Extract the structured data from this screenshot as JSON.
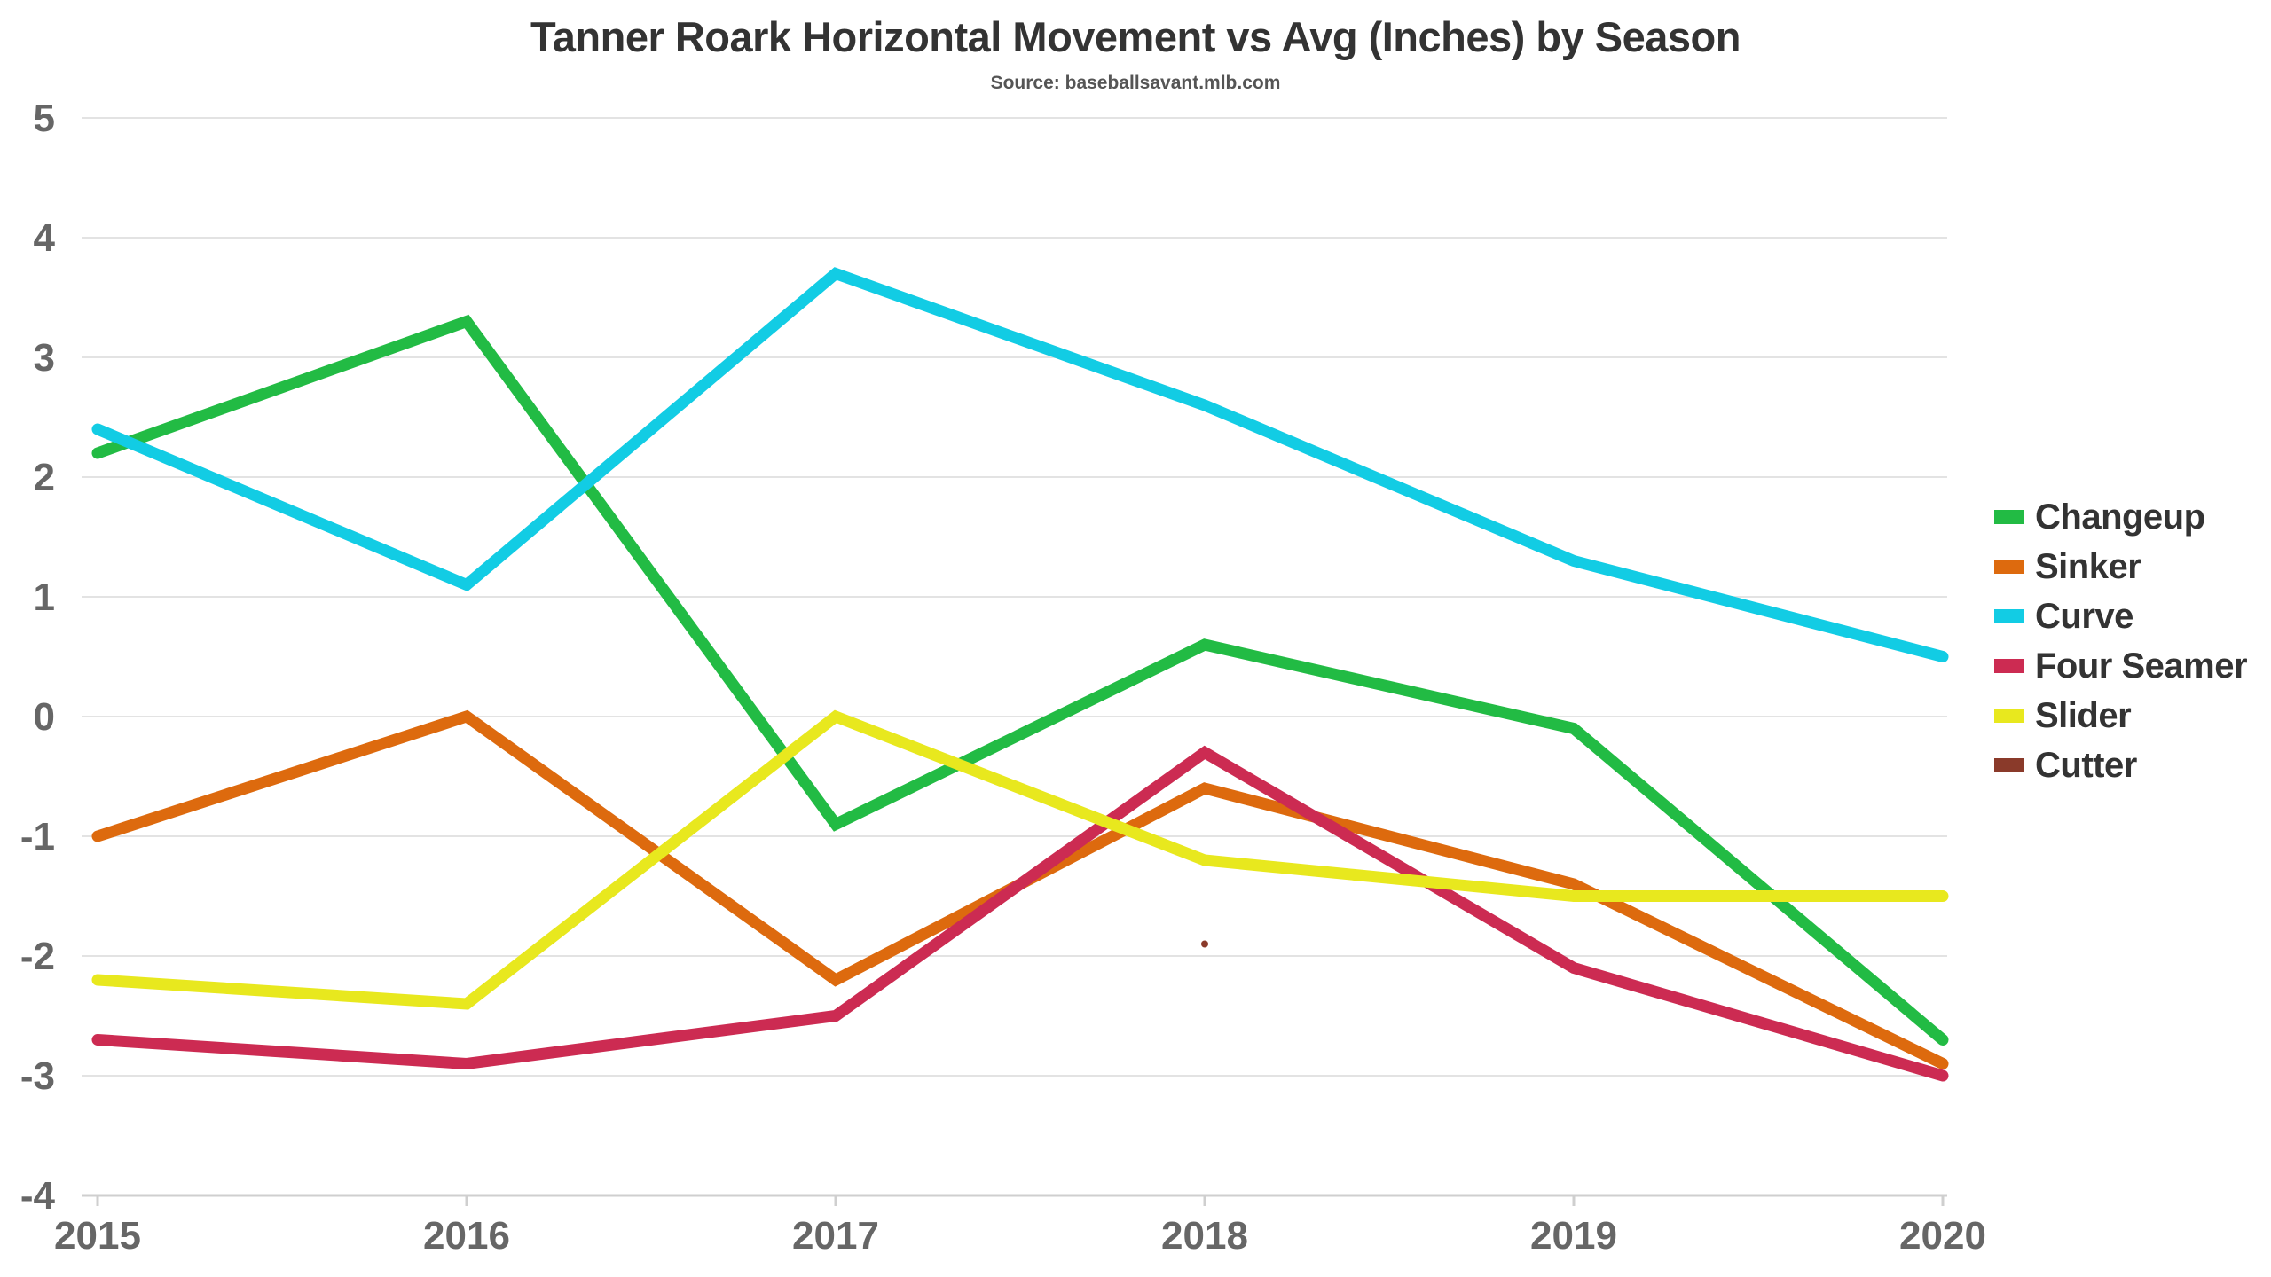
{
  "title": "Tanner Roark Horizontal Movement vs Avg (Inches) by Season",
  "subtitle": "Source: baseballsavant.mlb.com",
  "chart_data": {
    "type": "line",
    "title": "Tanner Roark Horizontal Movement vs Avg (Inches) by Season",
    "subtitle": "Source: baseballsavant.mlb.com",
    "xlabel": "",
    "ylabel": "",
    "x": [
      "2015",
      "2016",
      "2017",
      "2018",
      "2019",
      "2020"
    ],
    "ylim": [
      -4,
      5
    ],
    "yticks": [
      5,
      4,
      3,
      2,
      1,
      0,
      -1,
      -2,
      -3,
      -4
    ],
    "grid": true,
    "legend_position": "right",
    "series": [
      {
        "name": "Changeup",
        "color": "#22bb44",
        "values": [
          2.2,
          3.3,
          -0.9,
          0.6,
          -0.1,
          -2.7
        ]
      },
      {
        "name": "Sinker",
        "color": "#dd6a0e",
        "values": [
          -1.0,
          0.0,
          -2.2,
          -0.6,
          -1.4,
          -2.9
        ]
      },
      {
        "name": "Curve",
        "color": "#12cce4",
        "values": [
          2.4,
          1.1,
          3.7,
          2.6,
          1.3,
          0.5
        ]
      },
      {
        "name": "Four Seamer",
        "color": "#cc2b52",
        "values": [
          -2.7,
          -2.9,
          -2.5,
          -0.3,
          -2.1,
          -3.0
        ]
      },
      {
        "name": "Slider",
        "color": "#e8e81e",
        "values": [
          -2.2,
          -2.4,
          0.0,
          -1.2,
          -1.5,
          -1.5
        ]
      },
      {
        "name": "Cutter",
        "color": "#8a3a2a",
        "values": [
          null,
          null,
          null,
          -1.9,
          null,
          null
        ]
      }
    ]
  }
}
